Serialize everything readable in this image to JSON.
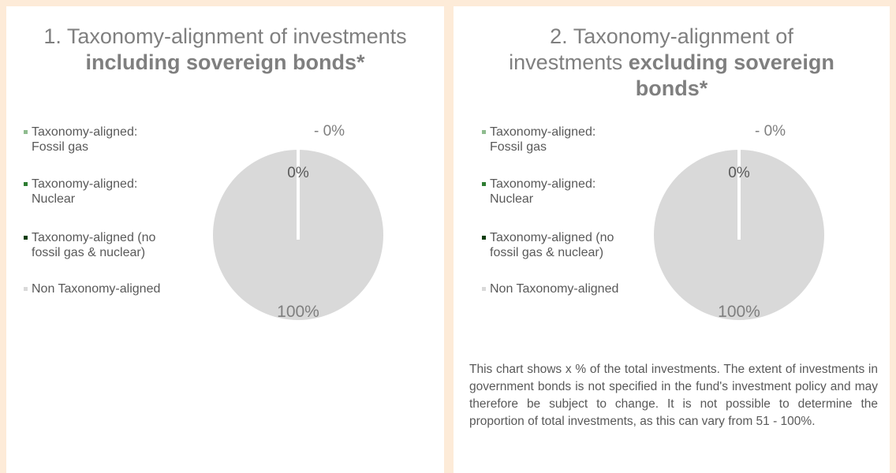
{
  "chart_data": [
    {
      "type": "pie",
      "title_prefix": "1. Taxonomy-alignment of investments ",
      "title_bold": "including sovereign bonds*",
      "legend_placement": "left",
      "legend": [
        {
          "label": "Taxonomy-aligned: Fossil gas",
          "color": "#8fbc8f"
        },
        {
          "label": "Taxonomy-aligned: Nuclear",
          "color": "#2e7d32"
        },
        {
          "label": "Taxonomy-aligned (no fossil gas & nuclear)",
          "color": "#0b3d0b"
        },
        {
          "label": "Non Taxonomy-aligned",
          "color": "#d9d9d9"
        }
      ],
      "slices": [
        {
          "label": "Taxonomy-aligned: Fossil gas",
          "value": 0,
          "data_label": "- 0%"
        },
        {
          "label": "Taxonomy-aligned: Nuclear",
          "value": 0,
          "data_label": "0%"
        },
        {
          "label": "Taxonomy-aligned (no fossil gas & nuclear)",
          "value": 0,
          "data_label": ""
        },
        {
          "label": "Non Taxonomy-aligned",
          "value": 100,
          "data_label": "100%"
        }
      ]
    },
    {
      "type": "pie",
      "title_prefix": "2. Taxonomy-alignment of investments ",
      "title_bold": "excluding sovereign bonds*",
      "legend_placement": "left",
      "legend": [
        {
          "label": "Taxonomy-aligned: Fossil gas",
          "color": "#8fbc8f"
        },
        {
          "label": "Taxonomy-aligned: Nuclear",
          "color": "#2e7d32"
        },
        {
          "label": "Taxonomy-aligned (no fossil gas & nuclear)",
          "color": "#0b3d0b"
        },
        {
          "label": "Non Taxonomy-aligned",
          "color": "#d9d9d9"
        }
      ],
      "slices": [
        {
          "label": "Taxonomy-aligned: Fossil gas",
          "value": 0,
          "data_label": "- 0%"
        },
        {
          "label": "Taxonomy-aligned: Nuclear",
          "value": 0,
          "data_label": "0%"
        },
        {
          "label": "Taxonomy-aligned (no fossil gas & nuclear)",
          "value": 0,
          "data_label": ""
        },
        {
          "label": "Non Taxonomy-aligned",
          "value": 100,
          "data_label": "100%"
        }
      ]
    }
  ],
  "note": "This chart shows x % of the total investments. The extent of investments in government bonds is not specified in the fund's investment policy and may therefore be subject to change. It is not possible to determine the proportion of total investments, as this can vary from 51 - 100%."
}
